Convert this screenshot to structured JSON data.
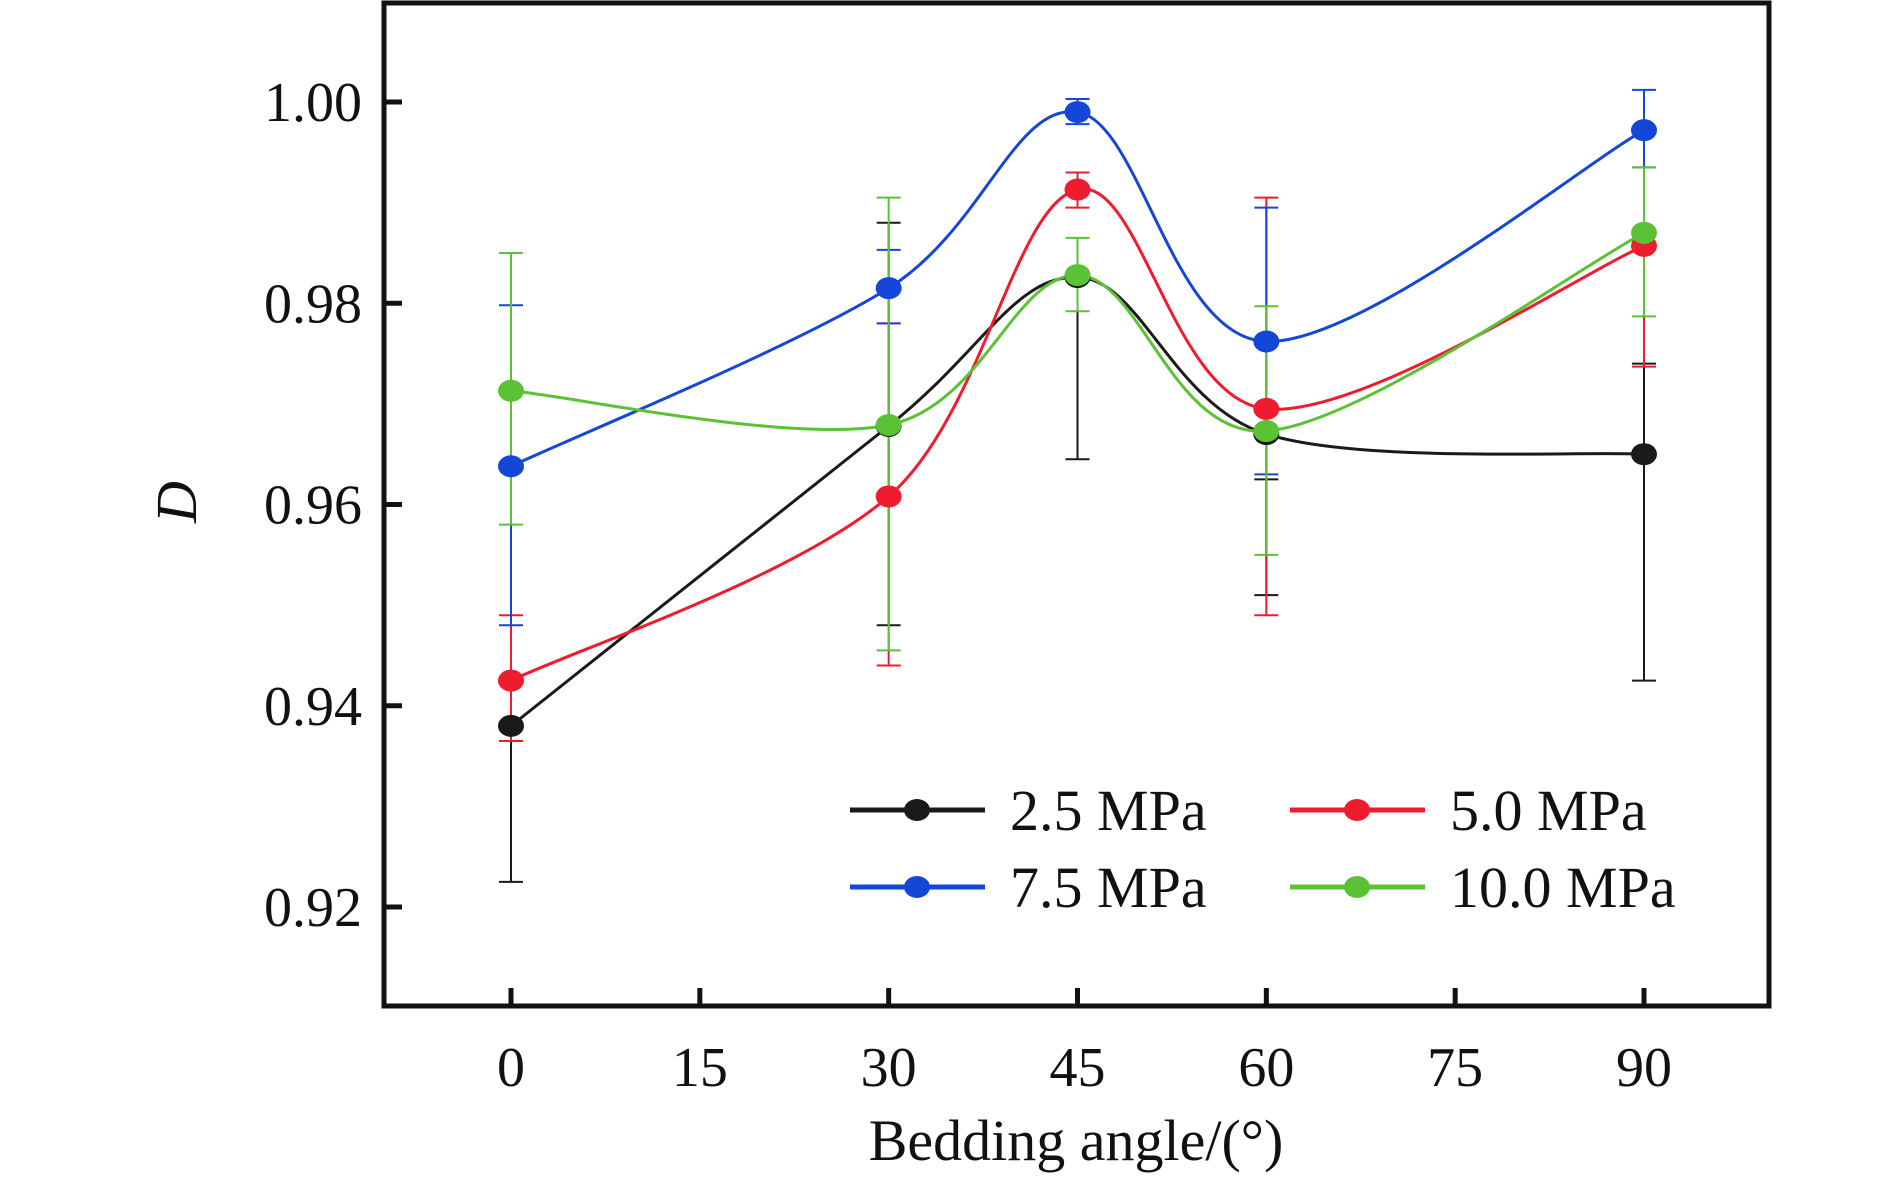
{
  "chart_data": {
    "type": "line",
    "title": "",
    "xlabel": "Bedding angle/(°)",
    "ylabel": "D",
    "xlim": [
      -12.5,
      107
    ],
    "ylim": [
      0.91,
      1.01
    ],
    "xticks": [
      0,
      15,
      30,
      45,
      60,
      75,
      90
    ],
    "yticks": [
      0.92,
      0.94,
      0.96,
      0.98,
      1.0
    ],
    "ytick_labels": [
      "0.92",
      "0.94",
      "0.96",
      "0.98",
      "1.00"
    ],
    "grid": false,
    "legend_position": "bottom-right",
    "x": [
      0,
      30,
      45,
      60,
      90
    ],
    "series": [
      {
        "name": "2.5 MPa",
        "color": "#1a1a1a",
        "values": [
          0.938,
          0.9678,
          0.9826,
          0.967,
          0.965
        ],
        "err_low": [
          0.9225,
          0.948,
          0.9645,
          0.951,
          0.9425
        ],
        "err_high": [
          0.9365,
          0.988,
          0.9825,
          0.9625,
          0.974
        ]
      },
      {
        "name": "5.0 MPa",
        "color": "#ee1c2e",
        "values": [
          0.9425,
          0.9608,
          0.9913,
          0.9695,
          0.9857
        ],
        "err_low": [
          0.9365,
          0.944,
          0.9895,
          0.949,
          0.9737
        ],
        "err_high": [
          0.949,
          0.978,
          0.993,
          0.9905,
          0.9975
        ]
      },
      {
        "name": "7.5 MPa",
        "color": "#1446d8",
        "values": [
          0.9638,
          0.9815,
          0.999,
          0.9762,
          0.9972
        ],
        "err_low": [
          0.948,
          0.978,
          0.9978,
          0.963,
          0.9935
        ],
        "err_high": [
          0.9798,
          0.9853,
          1.0003,
          0.9895,
          1.0012
        ]
      },
      {
        "name": "10.0 MPa",
        "color": "#5bc236",
        "values": [
          0.9713,
          0.9679,
          0.9828,
          0.9673,
          0.987
        ],
        "err_low": [
          0.958,
          0.9455,
          0.9792,
          0.955,
          0.9787
        ],
        "err_high": [
          0.985,
          0.9905,
          0.9865,
          0.9797,
          0.9935
        ]
      }
    ]
  }
}
